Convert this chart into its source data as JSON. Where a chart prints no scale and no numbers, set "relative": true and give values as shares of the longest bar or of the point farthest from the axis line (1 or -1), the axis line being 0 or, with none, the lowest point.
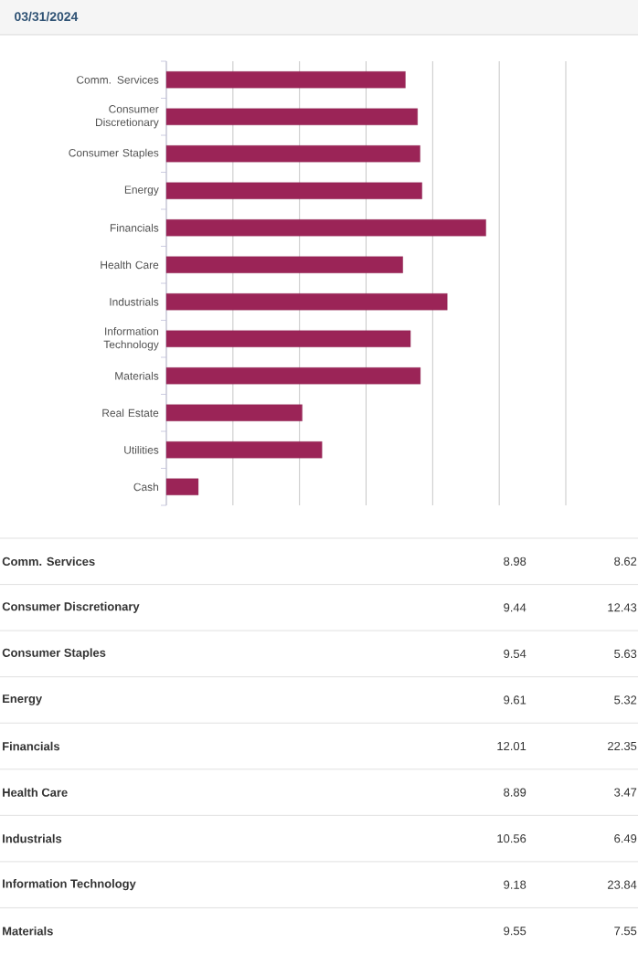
{
  "chart_data": [
    {
      "type": "bar",
      "title": "03/31/2024",
      "orientation": "horizontal",
      "relative": true,
      "categories": [
        "Comm. Services",
        "Consumer Discretionary",
        "Consumer Staples",
        "Energy",
        "Financials",
        "Health Care",
        "Industrials",
        "Information Technology",
        "Materials",
        "Real Estate",
        "Utilities",
        "Cash"
      ],
      "values": [
        0.748,
        0.786,
        0.794,
        0.8,
        1,
        0.74,
        0.879,
        0.764,
        0.795,
        0.425,
        0.487,
        0.1
      ],
      "color": "#9b2457",
      "grid": "x",
      "tick_labels": "y"
    },
    {
      "type": "other",
      "categories": [
        "Comm. Services",
        "Consumer Discretionary",
        "Consumer Staples",
        "Energy",
        "Financials",
        "Health Care",
        "Industrials",
        "Information Technology",
        "Materials"
      ],
      "series": [
        {
          "values": [
            8.98,
            9.44,
            9.54,
            9.61,
            12.01,
            8.89,
            10.56,
            9.18,
            9.55
          ]
        },
        {
          "values": [
            8.62,
            12.43,
            5.63,
            5.32,
            22.35,
            3.47,
            6.49,
            23.84,
            7.55
          ]
        }
      ],
      "data_labels": true
    }
  ]
}
